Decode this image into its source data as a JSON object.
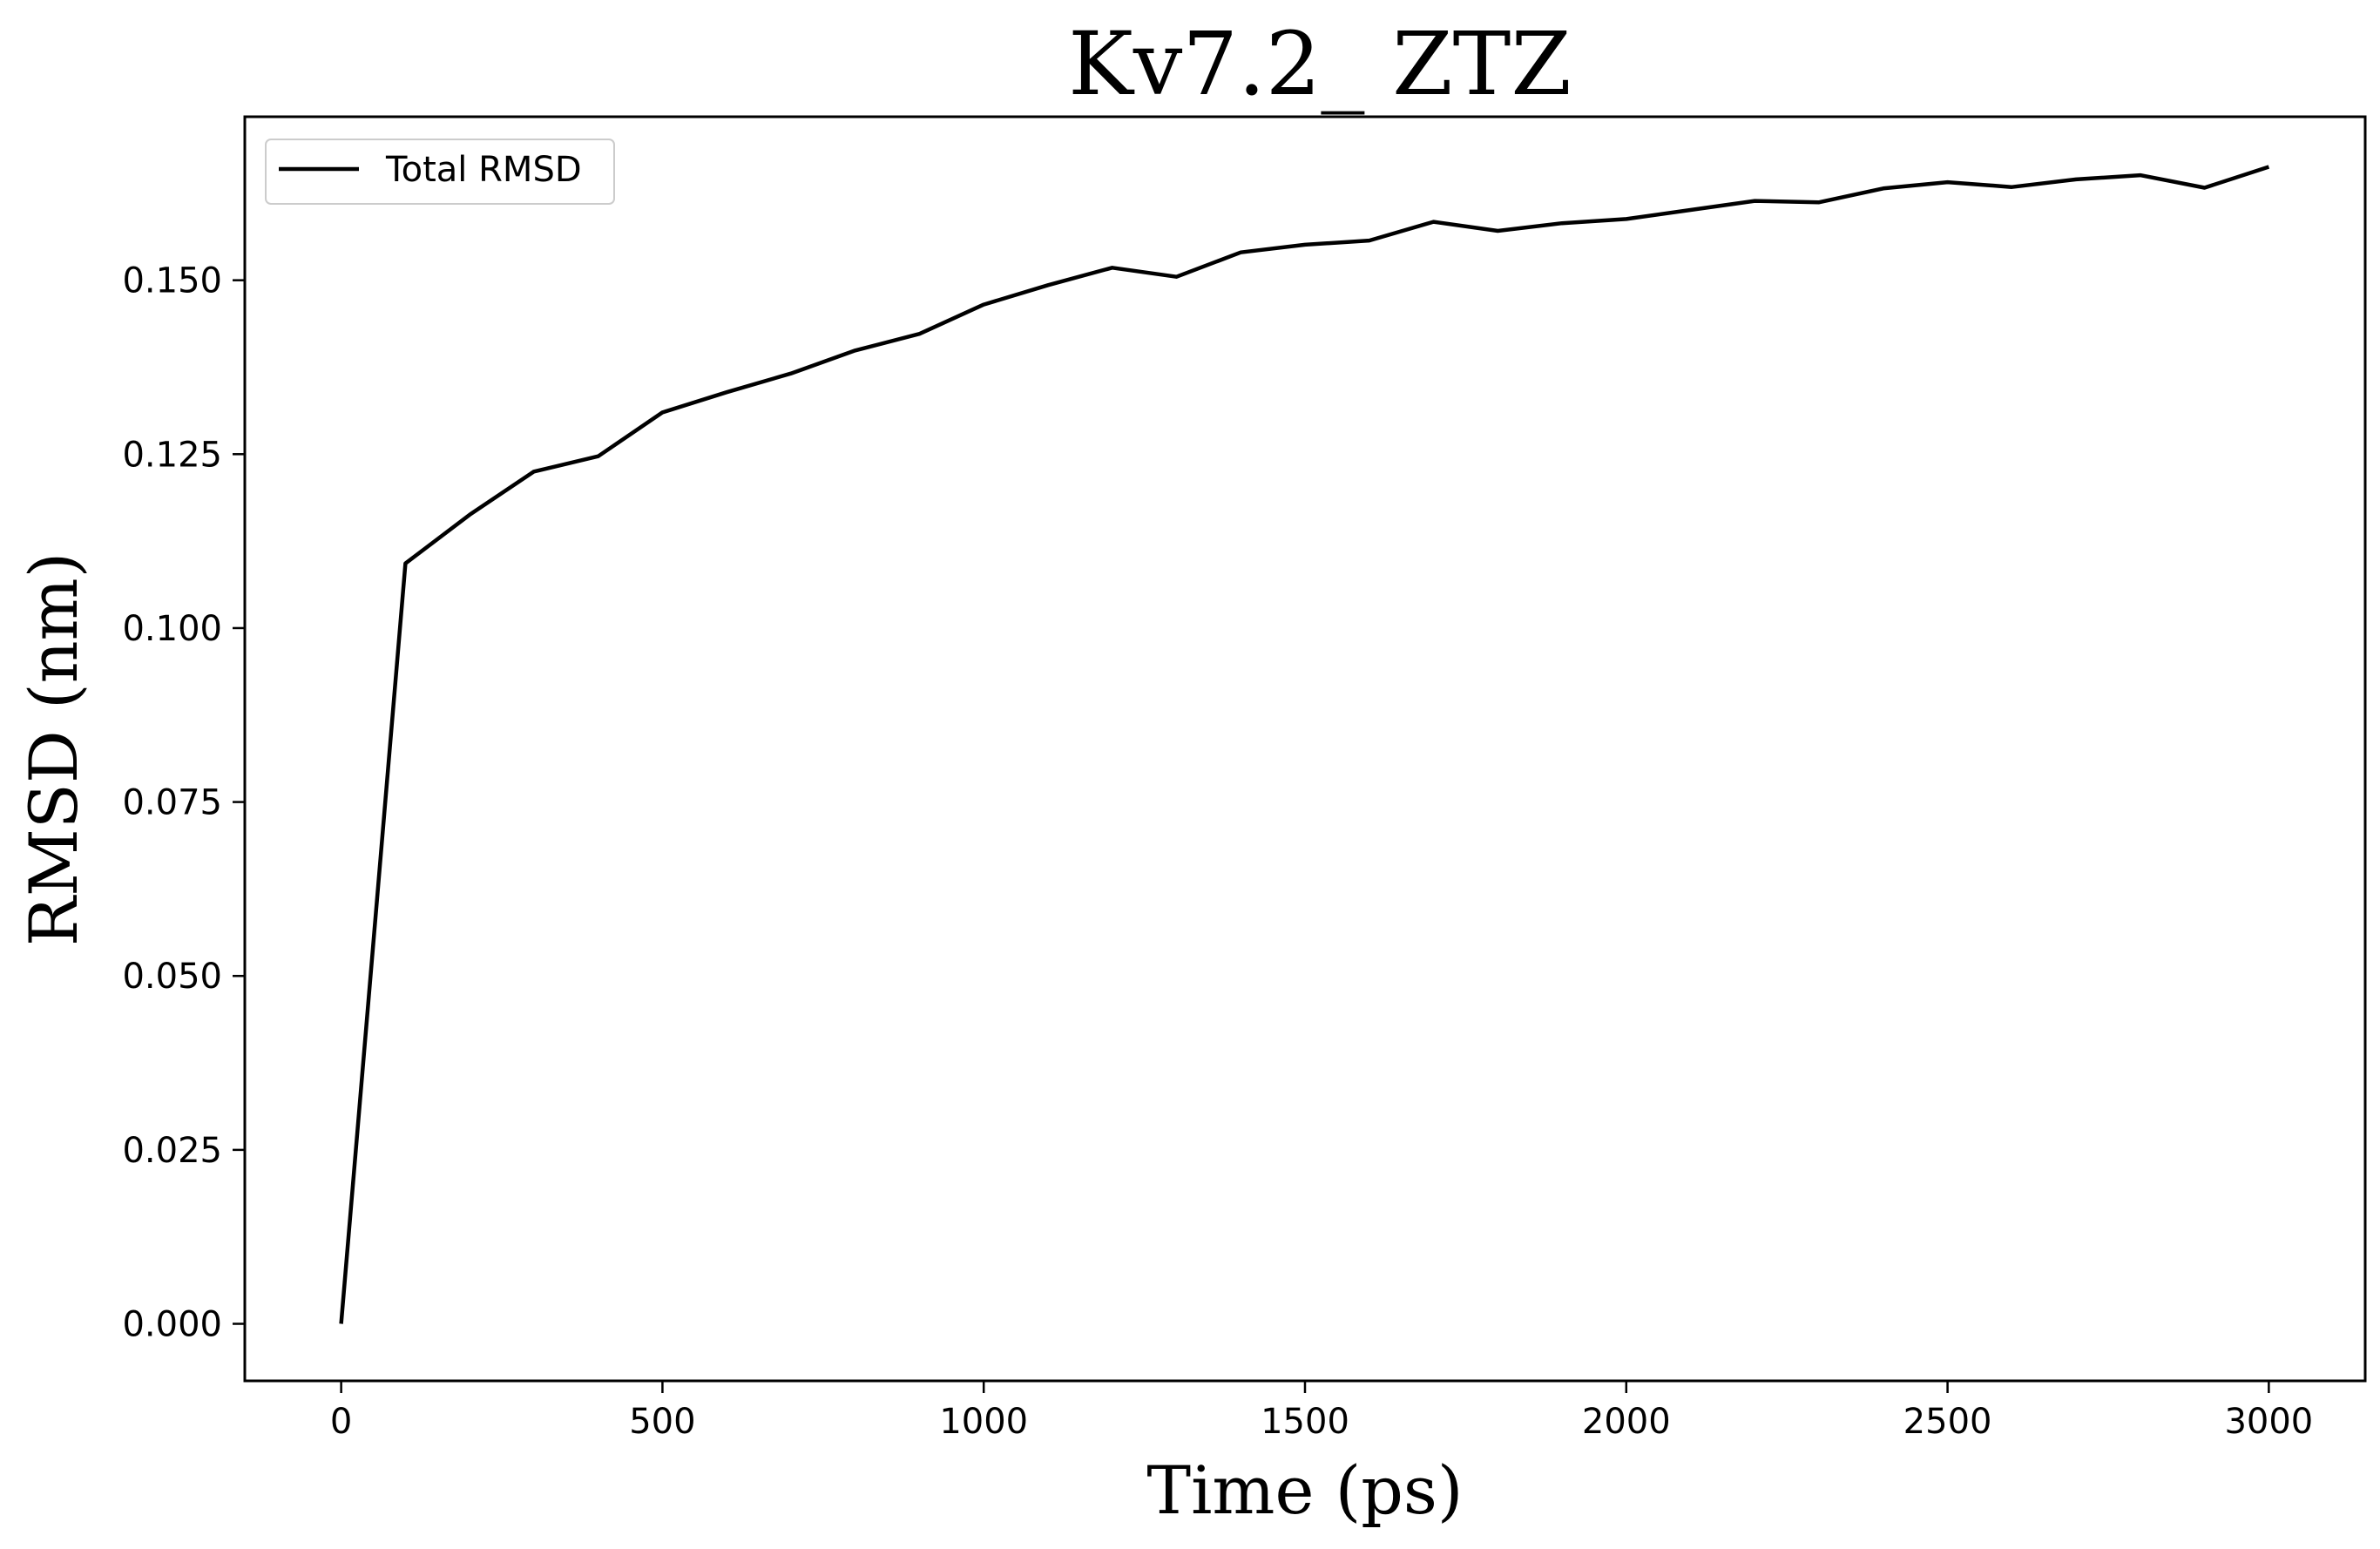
{
  "chart_data": {
    "type": "line",
    "title": "Kv7.2_ ZTZ",
    "xlabel": "Time (ps)",
    "ylabel": "RMSD (nm)",
    "xlim": [
      -150,
      3150
    ],
    "ylim": [
      -0.0082,
      0.1735
    ],
    "xticks": [
      0,
      500,
      1000,
      1500,
      2000,
      2500,
      3000
    ],
    "xtick_labels": [
      "0",
      "500",
      "1000",
      "1500",
      "2000",
      "2500",
      "3000"
    ],
    "yticks": [
      0.0,
      0.025,
      0.05,
      0.075,
      0.1,
      0.125,
      0.15
    ],
    "ytick_labels": [
      "0.000",
      "0.025",
      "0.050",
      "0.075",
      "0.100",
      "0.125",
      "0.150"
    ],
    "grid": false,
    "legend_position": "top-left",
    "series": [
      {
        "name": "Total RMSD",
        "color": "#000000",
        "x": [
          0,
          100,
          200,
          300,
          400,
          500,
          600,
          700,
          800,
          900,
          1000,
          1100,
          1200,
          1300,
          1400,
          1500,
          1600,
          1700,
          1800,
          1900,
          2000,
          2100,
          2200,
          2300,
          2400,
          2500,
          2600,
          2700,
          2800,
          2900,
          3000
        ],
        "y": [
          0.0,
          0.1093,
          0.1163,
          0.1225,
          0.1247,
          0.131,
          0.1339,
          0.1366,
          0.1399,
          0.1423,
          0.1465,
          0.1493,
          0.1518,
          0.1505,
          0.154,
          0.1551,
          0.1557,
          0.1584,
          0.1571,
          0.1582,
          0.1588,
          0.1601,
          0.1614,
          0.1612,
          0.1632,
          0.1641,
          0.1634,
          0.1645,
          0.1651,
          0.1633,
          0.1663
        ]
      }
    ]
  }
}
